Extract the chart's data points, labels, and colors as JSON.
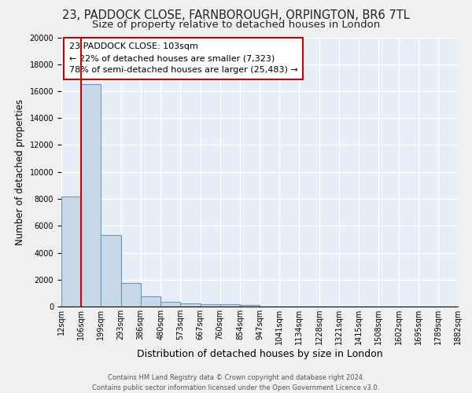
{
  "title1": "23, PADDOCK CLOSE, FARNBOROUGH, ORPINGTON, BR6 7TL",
  "title2": "Size of property relative to detached houses in London",
  "xlabel": "Distribution of detached houses by size in London",
  "ylabel": "Number of detached properties",
  "annotation_title": "23 PADDOCK CLOSE: 103sqm",
  "annotation_line1": "← 22% of detached houses are smaller (7,323)",
  "annotation_line2": "78% of semi-detached houses are larger (25,483) →",
  "bar_left_edges": [
    12,
    106,
    199,
    293,
    386,
    480,
    573,
    667,
    760,
    854,
    947,
    1041,
    1134,
    1228,
    1321,
    1415,
    1508,
    1602,
    1695,
    1789
  ],
  "bar_widths": [
    94,
    93,
    94,
    93,
    94,
    93,
    94,
    93,
    94,
    93,
    94,
    93,
    94,
    93,
    94,
    93,
    94,
    93,
    94,
    93
  ],
  "bar_heights": [
    8200,
    16500,
    5300,
    1750,
    750,
    350,
    250,
    200,
    175,
    125,
    0,
    0,
    0,
    0,
    0,
    0,
    0,
    0,
    0,
    0
  ],
  "bar_color": "#c8d8e8",
  "bar_edge_color": "#6699bb",
  "vline_x": 106,
  "vline_color": "#cc0000",
  "bg_color": "#e8eef8",
  "grid_color": "#ffffff",
  "fig_bg_color": "#f0f0f0",
  "ylim": [
    0,
    20000
  ],
  "yticks": [
    0,
    2000,
    4000,
    6000,
    8000,
    10000,
    12000,
    14000,
    16000,
    18000,
    20000
  ],
  "xtick_labels": [
    "12sqm",
    "106sqm",
    "199sqm",
    "293sqm",
    "386sqm",
    "480sqm",
    "573sqm",
    "667sqm",
    "760sqm",
    "854sqm",
    "947sqm",
    "1041sqm",
    "1134sqm",
    "1228sqm",
    "1321sqm",
    "1415sqm",
    "1508sqm",
    "1602sqm",
    "1695sqm",
    "1789sqm",
    "1882sqm"
  ],
  "footer_line1": "Contains HM Land Registry data © Crown copyright and database right 2024.",
  "footer_line2": "Contains public sector information licensed under the Open Government Licence v3.0.",
  "title1_fontsize": 10.5,
  "title2_fontsize": 9.5,
  "xlabel_fontsize": 9,
  "ylabel_fontsize": 8.5,
  "tick_fontsize": 7,
  "annotation_fontsize": 8,
  "footer_fontsize": 6,
  "annotation_box_color": "#ffffff",
  "annotation_box_edge": "#cc0000"
}
